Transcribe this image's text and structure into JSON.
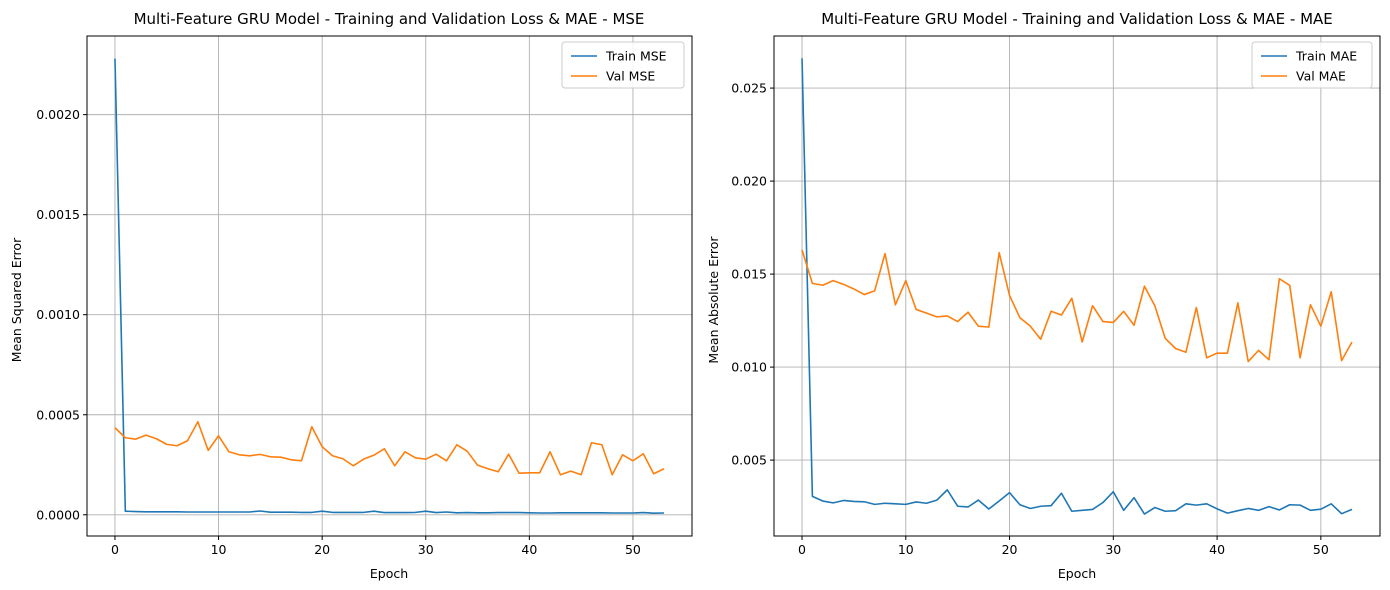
{
  "chart_data": [
    {
      "type": "line",
      "title": "Multi-Feature GRU Model - Training and Validation Loss & MAE - MSE",
      "xlabel": "Epoch",
      "ylabel": "Mean Squared Error",
      "xlim": [
        -2.7,
        55.7
      ],
      "ylim": [
        -0.000106,
        0.002393
      ],
      "xticks": [
        0,
        10,
        20,
        30,
        40,
        50
      ],
      "yticks": [
        0.0,
        0.0005,
        0.001,
        0.0015,
        0.002
      ],
      "ytick_labels": [
        "0.0000",
        "0.0005",
        "0.0010",
        "0.0015",
        "0.0020"
      ],
      "grid": true,
      "legend": "top-right",
      "series": [
        {
          "name": "Train MSE",
          "color": "#1f77b4",
          "values": [
            0.00228,
            1.8e-05,
            1.6e-05,
            1.5e-05,
            1.5e-05,
            1.5e-05,
            1.5e-05,
            1.4e-05,
            1.4e-05,
            1.4e-05,
            1.4e-05,
            1.4e-05,
            1.4e-05,
            1.4e-05,
            1.9e-05,
            1.3e-05,
            1.3e-05,
            1.3e-05,
            1.2e-05,
            1.2e-05,
            1.8e-05,
            1.2e-05,
            1.2e-05,
            1.2e-05,
            1.2e-05,
            1.8e-05,
            1.1e-05,
            1.1e-05,
            1.1e-05,
            1.2e-05,
            1.8e-05,
            1.1e-05,
            1.4e-05,
            1e-05,
            1.1e-05,
            1e-05,
            1e-05,
            1.1e-05,
            1.1e-05,
            1.1e-05,
            1e-05,
            9e-06,
            9e-06,
            1e-05,
            1e-05,
            1e-05,
            1e-05,
            1e-05,
            9e-06,
            9e-06,
            9e-06,
            1.1e-05,
            8e-06,
            9e-06
          ]
        },
        {
          "name": "Val MSE",
          "color": "#ff7f0e",
          "values": [
            0.000435,
            0.000385,
            0.000378,
            0.000398,
            0.00038,
            0.000352,
            0.000345,
            0.00037,
            0.000465,
            0.000322,
            0.000395,
            0.000315,
            0.0003,
            0.000295,
            0.000302,
            0.00029,
            0.000288,
            0.000275,
            0.00027,
            0.00044,
            0.00034,
            0.000295,
            0.00028,
            0.000245,
            0.000278,
            0.000298,
            0.00033,
            0.000245,
            0.000315,
            0.000285,
            0.000278,
            0.000303,
            0.00027,
            0.00035,
            0.000318,
            0.000248,
            0.00023,
            0.000215,
            0.000303,
            0.000208,
            0.00021,
            0.00021,
            0.000315,
            0.0002,
            0.000218,
            0.0002,
            0.00036,
            0.00035,
            0.0002,
            0.0003,
            0.00027,
            0.000305,
            0.000205,
            0.00023
          ]
        }
      ]
    },
    {
      "type": "line",
      "title": "Multi-Feature GRU Model - Training and Validation Loss & MAE - MAE",
      "xlabel": "Epoch",
      "ylabel": "Mean Absolute Error",
      "xlim": [
        -2.7,
        55.7
      ],
      "ylim": [
        0.00092,
        0.0278
      ],
      "xticks": [
        0,
        10,
        20,
        30,
        40,
        50
      ],
      "yticks": [
        0.005,
        0.01,
        0.015,
        0.02,
        0.025
      ],
      "ytick_labels": [
        "0.005",
        "0.010",
        "0.015",
        "0.020",
        "0.025"
      ],
      "grid": true,
      "legend": "top-right",
      "series": [
        {
          "name": "Train MAE",
          "color": "#1f77b4",
          "values": [
            0.0266,
            0.00305,
            0.0028,
            0.0027,
            0.00283,
            0.00278,
            0.00276,
            0.00262,
            0.00268,
            0.00265,
            0.00262,
            0.00275,
            0.00268,
            0.00285,
            0.0034,
            0.00252,
            0.00248,
            0.00285,
            0.00237,
            0.0028,
            0.00325,
            0.0026,
            0.0024,
            0.00252,
            0.00255,
            0.00322,
            0.00225,
            0.0023,
            0.00235,
            0.00272,
            0.0033,
            0.0023,
            0.00298,
            0.0021,
            0.00245,
            0.00225,
            0.00228,
            0.00265,
            0.00258,
            0.00265,
            0.00238,
            0.00215,
            0.00228,
            0.0024,
            0.0023,
            0.0025,
            0.00232,
            0.0026,
            0.00258,
            0.0023,
            0.00236,
            0.00265,
            0.00212,
            0.00235
          ]
        },
        {
          "name": "Val MAE",
          "color": "#ff7f0e",
          "values": [
            0.0163,
            0.0145,
            0.0144,
            0.01465,
            0.01445,
            0.0142,
            0.0139,
            0.0141,
            0.0161,
            0.01335,
            0.01465,
            0.0131,
            0.0129,
            0.0127,
            0.01275,
            0.01245,
            0.01295,
            0.0122,
            0.01215,
            0.01615,
            0.01385,
            0.01265,
            0.0122,
            0.0115,
            0.013,
            0.0128,
            0.0137,
            0.01135,
            0.0133,
            0.01245,
            0.0124,
            0.013,
            0.01225,
            0.01435,
            0.0133,
            0.01155,
            0.011,
            0.0108,
            0.0132,
            0.0105,
            0.01075,
            0.01075,
            0.01345,
            0.0103,
            0.0109,
            0.0104,
            0.01475,
            0.0144,
            0.0105,
            0.01335,
            0.0122,
            0.01405,
            0.01035,
            0.01135
          ]
        }
      ]
    }
  ]
}
